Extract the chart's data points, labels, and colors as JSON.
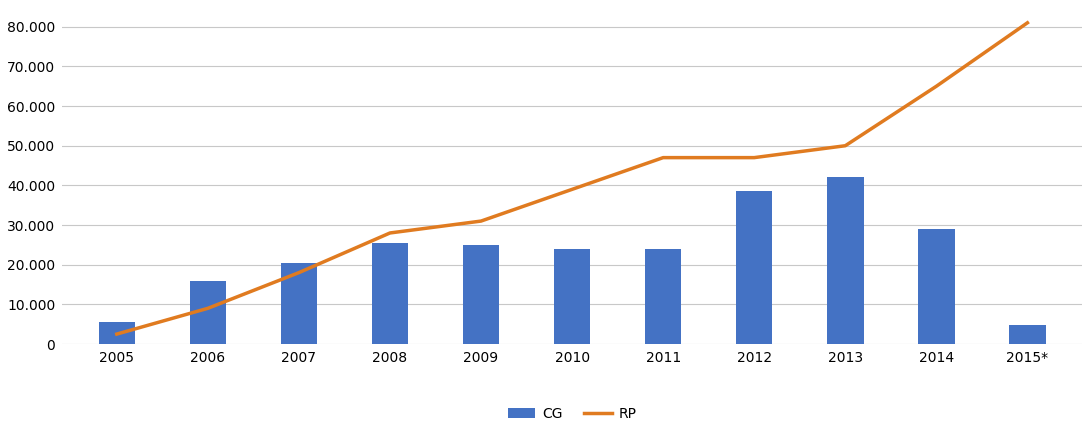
{
  "years": [
    "2005",
    "2006",
    "2007",
    "2008",
    "2009",
    "2010",
    "2011",
    "2012",
    "2013",
    "2014",
    "2015*"
  ],
  "CG": [
    5500,
    16000,
    20500,
    25500,
    25000,
    24000,
    24000,
    38500,
    42000,
    29000,
    4800
  ],
  "RP": [
    2500,
    9000,
    18000,
    28000,
    31000,
    39000,
    47000,
    47000,
    50000,
    65000,
    81000
  ],
  "bar_color": "#4472C4",
  "line_color": "#E07B20",
  "background_color": "#FFFFFF",
  "grid_color": "#C8C8C8",
  "ylim": [
    0,
    85000
  ],
  "yticks": [
    0,
    10000,
    20000,
    30000,
    40000,
    50000,
    60000,
    70000,
    80000
  ],
  "legend_CG": "CG",
  "legend_RP": "RP",
  "bar_width": 0.4,
  "line_width": 2.5,
  "tick_fontsize": 10,
  "legend_fontsize": 10
}
